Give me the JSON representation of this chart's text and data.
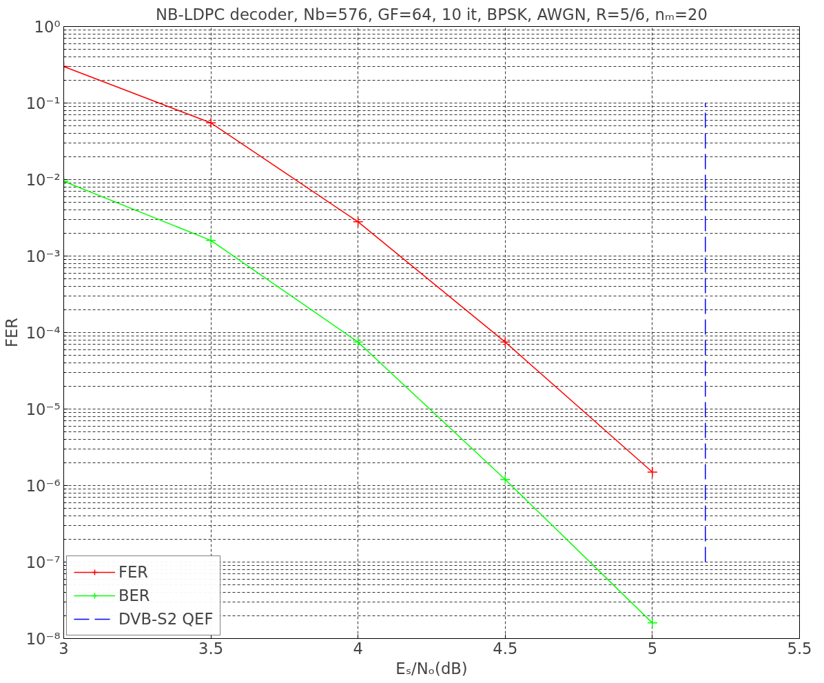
{
  "chart_data": {
    "type": "line",
    "title": "NB-LDPC decoder, Nb=576, GF=64, 10 it, BPSK, AWGN, R=5/6, nₘ=20",
    "xlabel": "Eₛ/Nₒ(dB)",
    "ylabel": "FER",
    "x": [
      3,
      3.5,
      4,
      4.5,
      5
    ],
    "series": [
      {
        "name": "FER",
        "color": "#ff0000",
        "values": [
          0.3,
          0.055,
          0.0028,
          7.5e-05,
          1.5e-06
        ],
        "marker": "cross",
        "line_style": "solid"
      },
      {
        "name": "BER",
        "color": "#00ff00",
        "values": [
          0.0095,
          0.0016,
          7.5e-05,
          1.2e-06,
          1.6e-08
        ],
        "marker": "cross",
        "line_style": "solid"
      },
      {
        "name": "DVB-S2 QEF",
        "color": "#0000ff",
        "type": "line",
        "x": [
          5.18,
          5.18
        ],
        "values": [
          1e-07,
          0.1
        ],
        "marker": "none",
        "line_style": "dashed"
      }
    ],
    "log": "y",
    "xlim": [
      3,
      5.5
    ],
    "ylim": [
      1e-08,
      1
    ],
    "xticks": [
      3,
      3.5,
      4,
      4.5,
      5,
      5.5
    ],
    "yticks": [
      {
        "value": 1e-08,
        "label": "10⁻⁸"
      },
      {
        "value": 1e-07,
        "label": "10⁻⁷"
      },
      {
        "value": 1e-06,
        "label": "10⁻⁶"
      },
      {
        "value": 1e-05,
        "label": "10⁻⁵"
      },
      {
        "value": 0.0001,
        "label": "10⁻⁴"
      },
      {
        "value": 0.001,
        "label": "10⁻³"
      },
      {
        "value": 0.01,
        "label": "10⁻²"
      },
      {
        "value": 0.1,
        "label": "10⁻¹"
      },
      {
        "value": 1,
        "label": "10⁰"
      }
    ],
    "grid": true,
    "legend": "bottom left"
  }
}
